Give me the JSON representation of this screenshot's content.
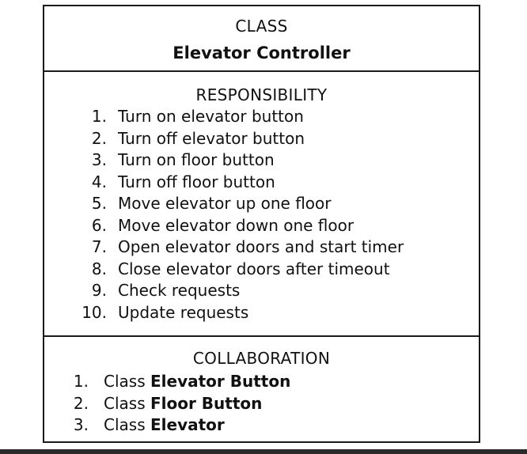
{
  "class_section": {
    "heading": "CLASS",
    "name": "Elevator Controller"
  },
  "responsibility_section": {
    "heading": "RESPONSIBILITY",
    "items": [
      {
        "num": "1.",
        "text": "Turn on elevator button"
      },
      {
        "num": "2.",
        "text": "Turn off elevator button"
      },
      {
        "num": "3.",
        "text": "Turn on floor button"
      },
      {
        "num": "4.",
        "text": "Turn off floor button"
      },
      {
        "num": "5.",
        "text": "Move elevator up one floor"
      },
      {
        "num": "6.",
        "text": "Move elevator down one floor"
      },
      {
        "num": "7.",
        "text": "Open elevator doors and start timer"
      },
      {
        "num": "8.",
        "text": "Close elevator doors after timeout"
      },
      {
        "num": "9.",
        "text": "Check requests"
      },
      {
        "num": "10.",
        "text": "Update requests"
      }
    ]
  },
  "collaboration_section": {
    "heading": "COLLABORATION",
    "items": [
      {
        "num": "1.",
        "prefix": "Class",
        "name": "Elevator Button"
      },
      {
        "num": "2.",
        "prefix": "Class",
        "name": "Floor Button"
      },
      {
        "num": "3.",
        "prefix": "Class",
        "name": "Elevator"
      }
    ]
  }
}
